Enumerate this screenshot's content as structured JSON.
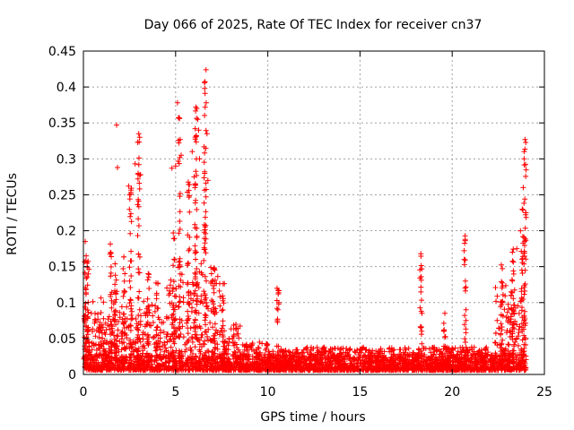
{
  "chart_data": {
    "type": "scatter",
    "title": "Day 066 of 2025, Rate Of TEC Index for receiver cn37",
    "xlabel": "GPS time / hours",
    "ylabel": "ROTI / TECUs",
    "xlim": [
      0,
      25
    ],
    "ylim": [
      0,
      0.45
    ],
    "xticks": [
      "0",
      "5",
      "10",
      "15",
      "20",
      "25"
    ],
    "yticks": [
      "0",
      "0.05",
      "0.1",
      "0.15",
      "0.2",
      "0.25",
      "0.3",
      "0.35",
      "0.4",
      "0.45"
    ],
    "grid": true,
    "marker": "+",
    "color": "#ff0000",
    "series": [
      {
        "name": "ROTI",
        "notable_points": [
          [
            0.1,
            0.185
          ],
          [
            0.15,
            0.165
          ],
          [
            0.2,
            0.155
          ],
          [
            1.8,
            0.347
          ],
          [
            1.85,
            0.288
          ],
          [
            2.45,
            0.262
          ],
          [
            2.5,
            0.25
          ],
          [
            2.8,
            0.293
          ],
          [
            3.0,
            0.335
          ],
          [
            3.05,
            0.33
          ],
          [
            3.1,
            0.278
          ],
          [
            4.8,
            0.287
          ],
          [
            5.0,
            0.29
          ],
          [
            5.1,
            0.378
          ],
          [
            5.2,
            0.357
          ],
          [
            5.25,
            0.327
          ],
          [
            5.3,
            0.305
          ],
          [
            5.9,
            0.31
          ],
          [
            6.0,
            0.275
          ],
          [
            6.05,
            0.26
          ],
          [
            6.1,
            0.372
          ],
          [
            6.15,
            0.37
          ],
          [
            6.2,
            0.355
          ],
          [
            6.25,
            0.34
          ],
          [
            6.3,
            0.3
          ],
          [
            6.6,
            0.372
          ],
          [
            6.65,
            0.424
          ],
          [
            6.7,
            0.335
          ],
          [
            6.75,
            0.27
          ],
          [
            10.5,
            0.12
          ],
          [
            10.6,
            0.1
          ],
          [
            10.55,
            0.09
          ],
          [
            18.3,
            0.168
          ],
          [
            18.35,
            0.147
          ],
          [
            19.6,
            0.085
          ],
          [
            20.7,
            0.193
          ],
          [
            20.65,
            0.16
          ],
          [
            20.7,
            0.12
          ],
          [
            20.75,
            0.09
          ],
          [
            23.5,
            0.175
          ],
          [
            23.7,
            0.2
          ],
          [
            23.8,
            0.23
          ],
          [
            23.85,
            0.26
          ],
          [
            23.9,
            0.3
          ],
          [
            23.95,
            0.327
          ],
          [
            23.9,
            0.31
          ],
          [
            24.0,
            0.225
          ]
        ],
        "envelope_note": "Dense cloud of points 0.005-0.05 across 0-24 h, with elevated activity 0-8 h and after 22.5 h"
      }
    ]
  }
}
